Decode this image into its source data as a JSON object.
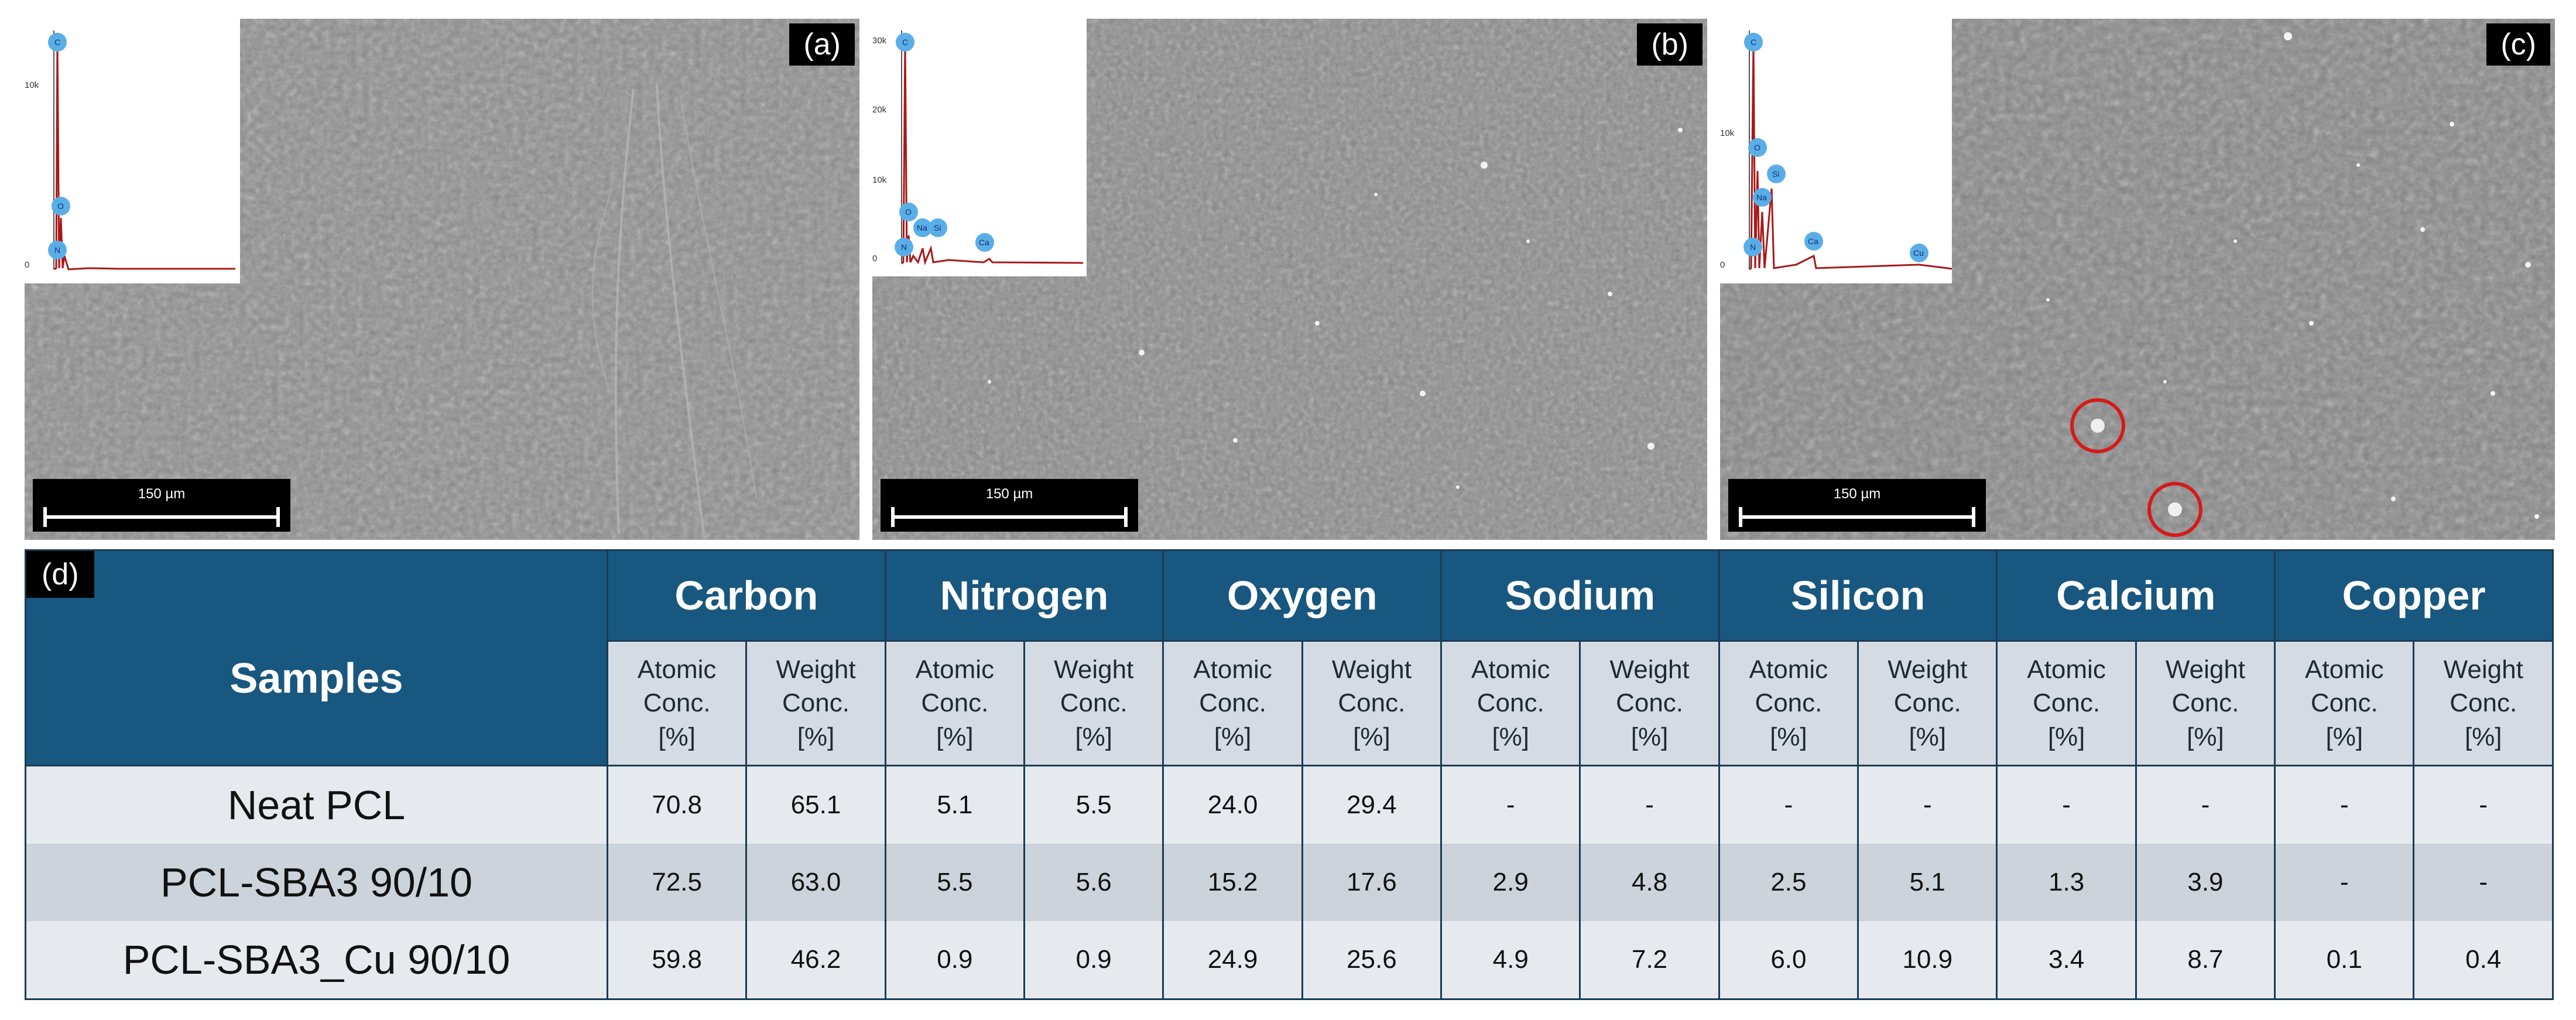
{
  "panels": [
    {
      "label": "(a)",
      "scale": "150 µm",
      "yticks": [
        "10k",
        "0"
      ],
      "elements": [
        "C",
        "O",
        "N"
      ]
    },
    {
      "label": "(b)",
      "scale": "150 µm",
      "yticks": [
        "30k",
        "20k",
        "10k",
        "0"
      ],
      "elements": [
        "C",
        "O",
        "N",
        "Na",
        "Si",
        "Ca"
      ]
    },
    {
      "label": "(c)",
      "scale": "150 µm",
      "yticks": [
        "10k",
        "0"
      ],
      "elements": [
        "C",
        "O",
        "Si",
        "Na",
        "N",
        "Ca",
        "Cu"
      ]
    }
  ],
  "table": {
    "label": "(d)",
    "samples_header": "Samples",
    "elements": [
      "Carbon",
      "Nitrogen",
      "Oxygen",
      "Sodium",
      "Silicon",
      "Calcium",
      "Copper"
    ],
    "sub_atomic": [
      "Atomic",
      "Conc.",
      "[%]"
    ],
    "sub_weight": [
      "Weight",
      "Conc.",
      "[%]"
    ],
    "rows": [
      {
        "sample": "Neat PCL",
        "values": [
          "70.8",
          "65.1",
          "5.1",
          "5.5",
          "24.0",
          "29.4",
          "-",
          "-",
          "-",
          "-",
          "-",
          "-",
          "-",
          "-"
        ]
      },
      {
        "sample": "PCL-SBA3 90/10",
        "values": [
          "72.5",
          "63.0",
          "5.5",
          "5.6",
          "15.2",
          "17.6",
          "2.9",
          "4.8",
          "2.5",
          "5.1",
          "1.3",
          "3.9",
          "-",
          "-"
        ]
      },
      {
        "sample": "PCL-SBA3_Cu 90/10",
        "values": [
          "59.8",
          "46.2",
          "0.9",
          "0.9",
          "24.9",
          "25.6",
          "4.9",
          "7.2",
          "6.0",
          "10.9",
          "3.4",
          "8.7",
          "0.1",
          "0.4"
        ]
      }
    ]
  },
  "colors": {
    "header_bg": "#18577f",
    "subheader_bg": "#d4dbe3",
    "row_light": "#e6eaee",
    "row_dark": "#cdd3da",
    "spectrum": "#a81818",
    "marker": "#5aaee8",
    "circle": "#d61a1a"
  }
}
